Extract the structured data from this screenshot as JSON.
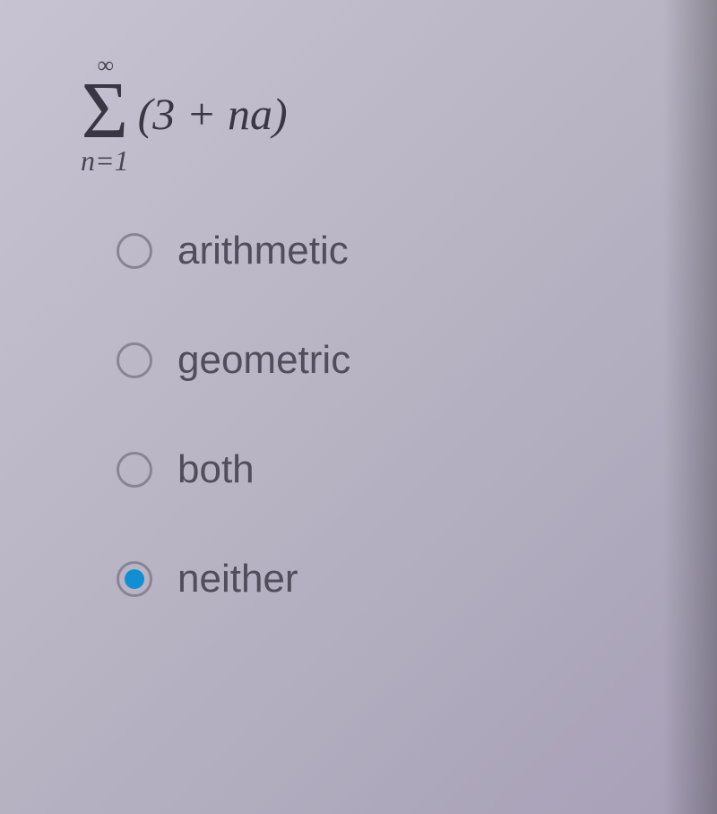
{
  "formula": {
    "upper_limit": "∞",
    "sigma": "Σ",
    "lower_limit": "n=1",
    "expression": "(3 + na)"
  },
  "options": [
    {
      "label": "arithmetic",
      "selected": false,
      "name": "option-arithmetic"
    },
    {
      "label": "geometric",
      "selected": false,
      "name": "option-geometric"
    },
    {
      "label": "both",
      "selected": false,
      "name": "option-both"
    },
    {
      "label": "neither",
      "selected": true,
      "name": "option-neither"
    }
  ],
  "colors": {
    "background_start": "#c8c4d4",
    "background_end": "#a8a0b8",
    "text_formula": "#383442",
    "text_label": "#504c5a",
    "radio_border": "#888494",
    "radio_fill": "#0e8fd6"
  },
  "typography": {
    "formula_font": "Times New Roman",
    "label_font": "Segoe UI",
    "label_fontsize": 44,
    "sigma_fontsize": 90,
    "expression_fontsize": 50
  }
}
